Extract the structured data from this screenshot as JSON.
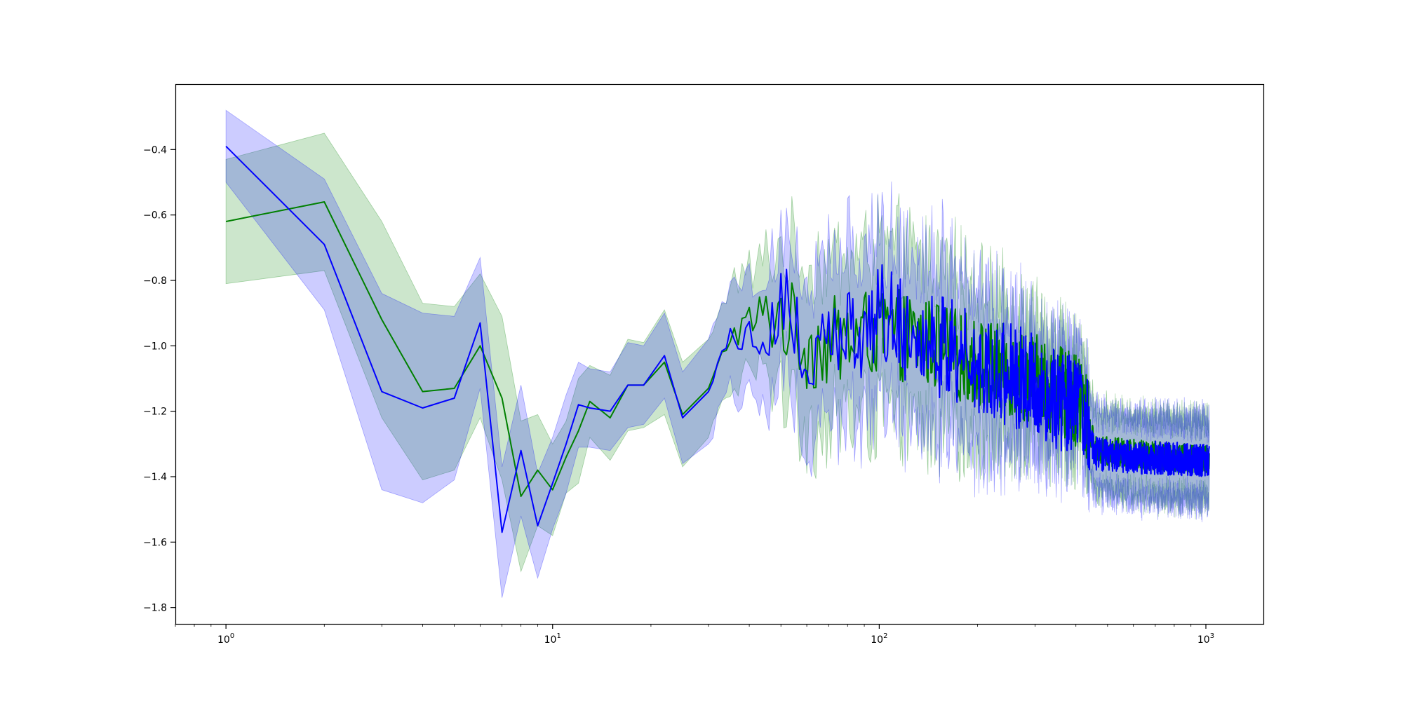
{
  "chart_data": {
    "type": "line",
    "title": "",
    "xlabel": "",
    "ylabel": "",
    "x_scale": "log",
    "xlim": [
      0.7,
      1500
    ],
    "ylim": [
      -1.85,
      -0.2
    ],
    "grid": false,
    "x_ticks": [
      {
        "value": 1,
        "base": "10",
        "exp": "0"
      },
      {
        "value": 10,
        "base": "10",
        "exp": "1"
      },
      {
        "value": 100,
        "base": "10",
        "exp": "2"
      },
      {
        "value": 1000,
        "base": "10",
        "exp": "3"
      }
    ],
    "y_ticks": [
      {
        "value": -0.4,
        "label": "−0.4"
      },
      {
        "value": -0.6,
        "label": "−0.6"
      },
      {
        "value": -0.8,
        "label": "−0.8"
      },
      {
        "value": -1.0,
        "label": "−1.0"
      },
      {
        "value": -1.2,
        "label": "−1.2"
      },
      {
        "value": -1.4,
        "label": "−1.4"
      },
      {
        "value": -1.6,
        "label": "−1.6"
      },
      {
        "value": -1.8,
        "label": "−1.8"
      }
    ],
    "series": [
      {
        "color": "#008000",
        "band_color": "#008000",
        "band_opacity": 0.2,
        "noise_amplitude": 0.14,
        "x_max": 1024,
        "anchors": [
          [
            1,
            -0.62,
            0.19
          ],
          [
            2,
            -0.56,
            0.21
          ],
          [
            3,
            -0.92,
            0.3
          ],
          [
            4,
            -1.14,
            0.27
          ],
          [
            5,
            -1.13,
            0.25
          ],
          [
            6,
            -1.0,
            0.22
          ],
          [
            7,
            -1.16,
            0.25
          ],
          [
            8,
            -1.46,
            0.23
          ],
          [
            9,
            -1.38,
            0.17
          ],
          [
            10,
            -1.44,
            0.14
          ],
          [
            11,
            -1.34,
            0.11
          ],
          [
            12,
            -1.26,
            0.16
          ],
          [
            13,
            -1.17,
            0.11
          ],
          [
            15,
            -1.22,
            0.13
          ],
          [
            17,
            -1.12,
            0.14
          ],
          [
            19,
            -1.12,
            0.13
          ],
          [
            22,
            -1.05,
            0.16
          ],
          [
            25,
            -1.21,
            0.16
          ],
          [
            30,
            -1.13,
            0.15
          ],
          [
            35,
            -0.97,
            0.17
          ],
          [
            40,
            -0.93,
            0.15
          ],
          [
            50,
            -0.9,
            0.2
          ],
          [
            60,
            -1.0,
            0.25
          ],
          [
            80,
            -0.98,
            0.25
          ],
          [
            100,
            -0.95,
            0.25
          ],
          [
            150,
            -1.0,
            0.25
          ],
          [
            200,
            -1.05,
            0.22
          ],
          [
            300,
            -1.1,
            0.16
          ],
          [
            420,
            -1.18,
            0.12
          ],
          [
            460,
            -1.32,
            0.12
          ],
          [
            600,
            -1.33,
            0.12
          ],
          [
            1024,
            -1.35,
            0.12
          ]
        ]
      },
      {
        "color": "#0000ff",
        "band_color": "#0000ff",
        "band_opacity": 0.2,
        "noise_amplitude": 0.16,
        "x_max": 1024,
        "anchors": [
          [
            1,
            -0.39,
            0.11
          ],
          [
            2,
            -0.69,
            0.2
          ],
          [
            3,
            -1.14,
            0.3
          ],
          [
            4,
            -1.19,
            0.29
          ],
          [
            5,
            -1.16,
            0.25
          ],
          [
            6,
            -0.93,
            0.2
          ],
          [
            7,
            -1.57,
            0.2
          ],
          [
            8,
            -1.32,
            0.2
          ],
          [
            9,
            -1.55,
            0.16
          ],
          [
            10,
            -1.42,
            0.14
          ],
          [
            11,
            -1.3,
            0.15
          ],
          [
            12,
            -1.18,
            0.13
          ],
          [
            13,
            -1.19,
            0.12
          ],
          [
            15,
            -1.2,
            0.12
          ],
          [
            17,
            -1.12,
            0.13
          ],
          [
            19,
            -1.12,
            0.12
          ],
          [
            22,
            -1.03,
            0.13
          ],
          [
            25,
            -1.22,
            0.14
          ],
          [
            30,
            -1.14,
            0.16
          ],
          [
            35,
            -0.95,
            0.17
          ],
          [
            40,
            -0.98,
            0.15
          ],
          [
            50,
            -0.86,
            0.22
          ],
          [
            60,
            -1.05,
            0.25
          ],
          [
            80,
            -0.97,
            0.25
          ],
          [
            100,
            -0.9,
            0.25
          ],
          [
            150,
            -1.0,
            0.26
          ],
          [
            200,
            -1.05,
            0.23
          ],
          [
            300,
            -1.12,
            0.16
          ],
          [
            420,
            -1.2,
            0.12
          ],
          [
            460,
            -1.33,
            0.12
          ],
          [
            600,
            -1.34,
            0.12
          ],
          [
            1024,
            -1.35,
            0.12
          ]
        ]
      }
    ]
  }
}
